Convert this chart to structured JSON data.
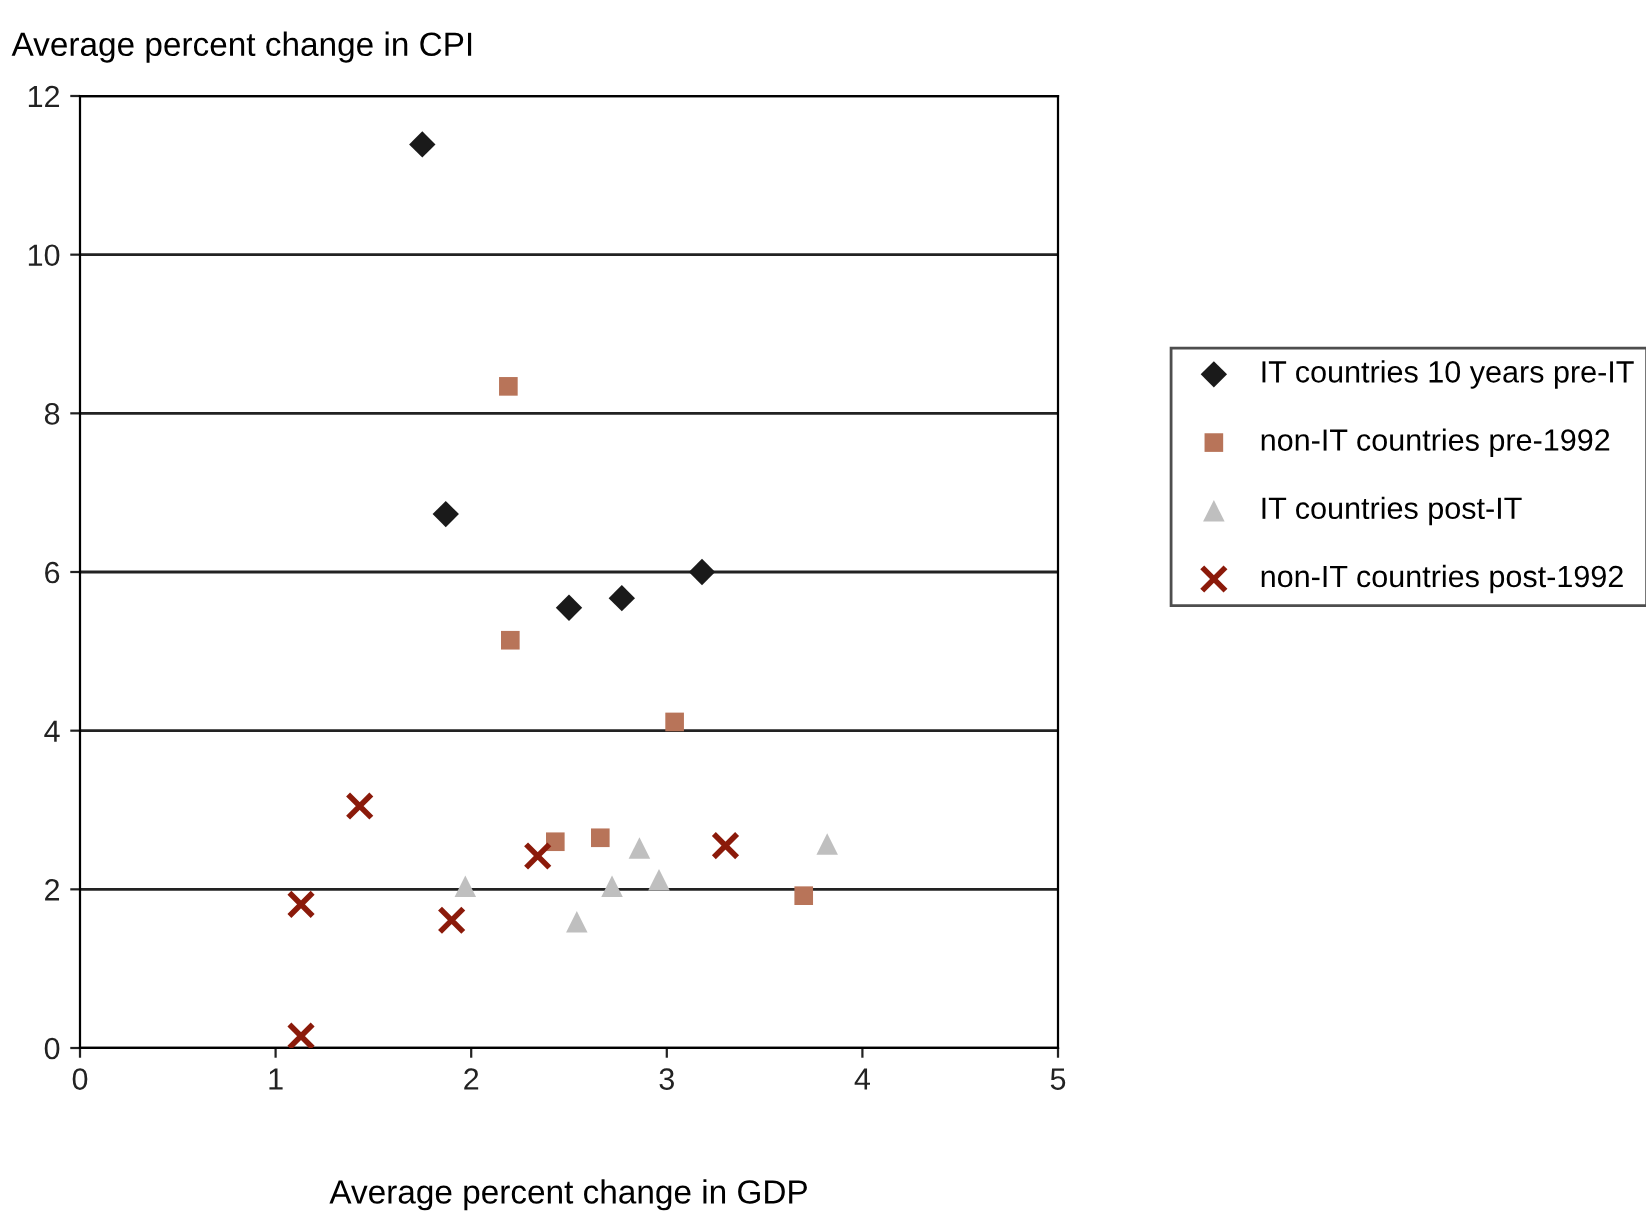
{
  "chart_data": {
    "type": "scatter",
    "xlabel": "Average percent change in GDP",
    "ylabel": "Average percent change in CPI",
    "xlim": [
      0,
      5
    ],
    "xticks": [
      0,
      1,
      2,
      3,
      4,
      5
    ],
    "ylim": [
      0,
      12
    ],
    "yticks": [
      0,
      2,
      4,
      6,
      8,
      10,
      12
    ],
    "grid": "y",
    "legend": "right",
    "series": [
      {
        "name": "IT countries 10 years pre-IT",
        "color": "#1a1a1a",
        "marker": "diamond",
        "x": [
          1.75,
          1.87,
          2.5,
          2.77,
          3.18
        ],
        "values": [
          11.39,
          6.73,
          5.55,
          5.67,
          6.0
        ]
      },
      {
        "name": "non-IT countries pre-1992",
        "color": "#b87459",
        "marker": "square",
        "x": [
          2.19,
          2.2,
          3.04,
          2.43,
          2.66,
          3.7
        ],
        "values": [
          8.34,
          5.14,
          4.11,
          2.6,
          2.65,
          1.92
        ]
      },
      {
        "name": "IT countries post-IT",
        "color": "#bfbfbf",
        "marker": "triangle",
        "x": [
          1.97,
          2.54,
          2.72,
          2.86,
          2.96,
          3.82
        ],
        "values": [
          2.04,
          1.59,
          2.04,
          2.52,
          2.12,
          2.57
        ]
      },
      {
        "name": "non-IT countries post-1992",
        "color": "#8b1a0a",
        "marker": "cross",
        "x": [
          1.13,
          1.43,
          1.9,
          2.34,
          3.3,
          1.13
        ],
        "values": [
          1.81,
          3.05,
          1.61,
          2.42,
          2.55,
          0.15
        ]
      }
    ]
  }
}
